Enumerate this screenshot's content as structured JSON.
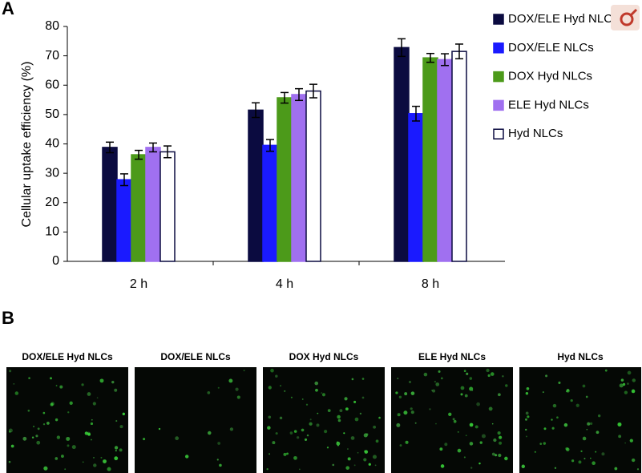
{
  "panels": {
    "a": "A",
    "b": "B"
  },
  "chart_data": {
    "type": "bar",
    "y_label": "Cellular uptake efficiency (%)",
    "categories": [
      "2 h",
      "4 h",
      "8 h"
    ],
    "ylim": [
      0,
      80
    ],
    "yticks": [
      0,
      10,
      20,
      30,
      40,
      50,
      60,
      70,
      80
    ],
    "series": [
      {
        "name": "DOX/ELE Hyd NLCs",
        "color": "#0b0b40",
        "values": [
          38.8,
          51.5,
          72.8
        ],
        "errors": [
          1.8,
          2.5,
          3
        ]
      },
      {
        "name": "DOX/ELE NLCs",
        "color": "#1a1aff",
        "values": [
          27.8,
          39.5,
          50.3
        ],
        "errors": [
          2,
          2,
          2.5
        ]
      },
      {
        "name": "DOX Hyd NLCs",
        "color": "#4c9a1a",
        "values": [
          36.3,
          55.7,
          69.3
        ],
        "errors": [
          1.5,
          1.8,
          1.5
        ]
      },
      {
        "name": "ELE Hyd NLCs",
        "color": "#a070f0",
        "values": [
          38.8,
          56.8,
          68.7
        ],
        "errors": [
          1.5,
          2,
          2
        ]
      },
      {
        "name": "Hyd NLCs",
        "color": "#ffffff",
        "values": [
          37.3,
          58,
          71.5
        ],
        "errors": [
          2,
          2.3,
          2.5
        ]
      }
    ]
  },
  "micrographs": {
    "labels": [
      "DOX/ELE Hyd NLCs",
      "DOX/ELE NLCs",
      "DOX Hyd NLCs",
      "ELE Hyd NLCs",
      "Hyd NLCs"
    ]
  }
}
